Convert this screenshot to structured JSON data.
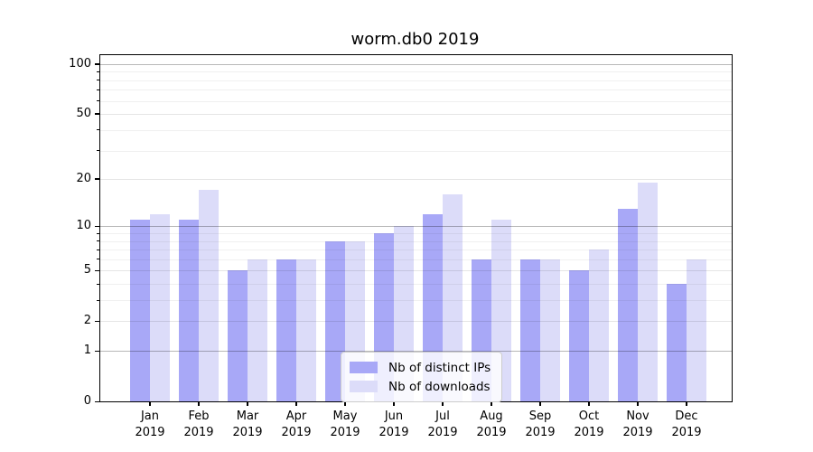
{
  "figure": {
    "title": "worm.db0 2019"
  },
  "chart_data": {
    "type": "bar",
    "title": "worm.db0 2019",
    "xlabel": "",
    "ylabel": "",
    "x_months": [
      "Jan",
      "Feb",
      "Mar",
      "Apr",
      "May",
      "Jun",
      "Jul",
      "Aug",
      "Sep",
      "Oct",
      "Nov",
      "Dec"
    ],
    "x_year": "2019",
    "series": [
      {
        "name": "Nb of distinct IPs",
        "color": "#a8a8f7",
        "values": [
          11,
          11,
          5,
          6,
          8,
          9,
          12,
          6,
          6,
          5,
          13,
          4
        ]
      },
      {
        "name": "Nb of downloads",
        "color": "#dcdcf9",
        "values": [
          12,
          17,
          6,
          6,
          8,
          10,
          16,
          11,
          6,
          7,
          19,
          6
        ]
      }
    ],
    "y_axis": {
      "scale": "log10(1+x)",
      "ylim": [
        0,
        113
      ],
      "major_ticks": [
        {
          "label": "100",
          "value": 100
        },
        {
          "label": "50",
          "value": 50
        },
        {
          "label": "20",
          "value": 20
        },
        {
          "label": "10",
          "value": 10
        },
        {
          "label": "5",
          "value": 5
        },
        {
          "label": "2",
          "value": 2
        },
        {
          "label": "1",
          "value": 1
        },
        {
          "label": "0",
          "value": 0
        }
      ],
      "decade_grid_values": [
        100,
        10,
        1
      ],
      "labeled_grid_values": [
        50,
        20,
        5,
        2
      ],
      "minor_grid_values": [
        90,
        80,
        70,
        60,
        40,
        30,
        9,
        8,
        7,
        6,
        4,
        3
      ]
    },
    "legend": {
      "position": "inside-bottom-center",
      "entries": [
        "Nb of distinct IPs",
        "Nb of downloads"
      ]
    },
    "grid": true
  },
  "colors": {
    "bar_distinct_ips": "#a8a8f7",
    "bar_downloads": "#dcdcf9",
    "axis": "#000000",
    "legend_border": "#cccccc",
    "legend_background": "rgba(255,255,255,0.82)"
  }
}
